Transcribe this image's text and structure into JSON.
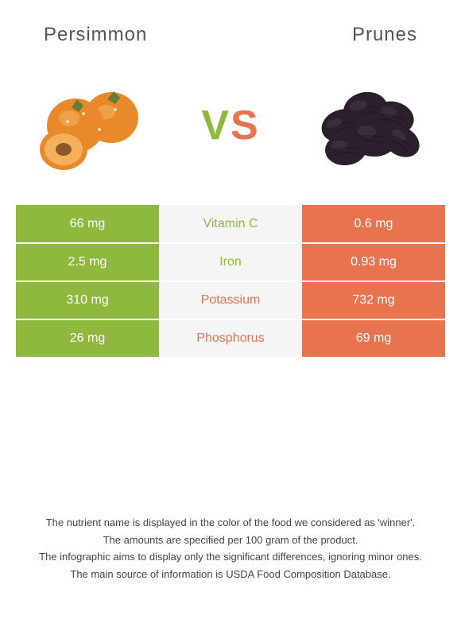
{
  "header": {
    "left_title": "Persimmon",
    "right_title": "Prunes"
  },
  "vs": {
    "v": "V",
    "s": "S"
  },
  "colors": {
    "persimmon": "#8fb83e",
    "prunes": "#e8734f",
    "persimmon_fruit": "#e88a2a",
    "persimmon_highlight": "#f4b05a",
    "persimmon_leaf": "#6a7a3a",
    "prune_dark": "#2a1f2a",
    "prune_highlight": "#4a3a45",
    "row_bg": "#f5f5f5"
  },
  "nutrients": [
    {
      "name": "Vitamin C",
      "left": "66 mg",
      "right": "0.6 mg",
      "winner": "left"
    },
    {
      "name": "Iron",
      "left": "2.5 mg",
      "right": "0.93 mg",
      "winner": "left"
    },
    {
      "name": "Potassium",
      "left": "310 mg",
      "right": "732 mg",
      "winner": "right"
    },
    {
      "name": "Phosphorus",
      "left": "26 mg",
      "right": "69 mg",
      "winner": "right"
    }
  ],
  "footer": {
    "line1": "The nutrient name is displayed in the color of the food we considered as 'winner'.",
    "line2": "The amounts are specified per 100 gram of the product.",
    "line3": "The infographic aims to display only the significant differences, ignoring minor ones.",
    "line4": "The main source of information is USDA Food Composition Database."
  },
  "typography": {
    "title_fontsize": 24,
    "vs_fontsize": 52,
    "cell_fontsize": 16,
    "footer_fontsize": 13
  }
}
